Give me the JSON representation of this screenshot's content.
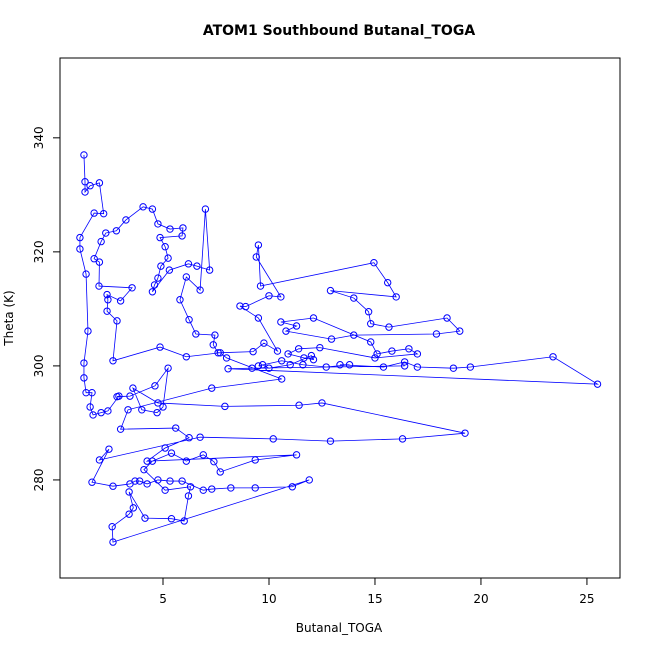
{
  "chart_data": {
    "type": "line",
    "title": "ATOM1 Southbound Butanal_TOGA",
    "xlabel": "Butanal_TOGA",
    "ylabel": "Theta (K)",
    "color": "#0000ff",
    "xlim": [
      0.14,
      26.56
    ],
    "ylim": [
      262.8,
      354.0
    ],
    "xticks": [
      5,
      10,
      15,
      20,
      25
    ],
    "yticks": [
      280,
      300,
      320,
      340
    ],
    "x": [
      1.27,
      1.32,
      1.32,
      1.56,
      2.0,
      2.2,
      1.75,
      1.08,
      1.08,
      1.37,
      1.46,
      1.27,
      1.27,
      1.37,
      1.65,
      1.56,
      1.7,
      2.08,
      2.4,
      2.92,
      2.83,
      3.44,
      4.62,
      5.24,
      5.0,
      4.72,
      4.0,
      3.58,
      4.76,
      7.92,
      11.42,
      12.5,
      19.25,
      16.3,
      12.9,
      10.2,
      6.75,
      2.0,
      2.45,
      1.65,
      2.64,
      3.44,
      3.68,
      3.9,
      4.25,
      4.76,
      5.33,
      5.9,
      6.9,
      7.3,
      8.2,
      9.35,
      11.1,
      11.9,
      2.64,
      2.6,
      3.4,
      3.6,
      3.4,
      4.15,
      5.4,
      6.0,
      6.2,
      6.3,
      5.1,
      4.1,
      4.5,
      5.4,
      6.1,
      6.9,
      7.4,
      7.7,
      9.35,
      11.3,
      4.25,
      5.1,
      6.23,
      5.6,
      3.0,
      3.35,
      7.3,
      10.6,
      8.0,
      7.7,
      6.1,
      4.86,
      2.64,
      2.83,
      2.36,
      2.4,
      2.36,
      3.0,
      3.54,
      1.98,
      2.0,
      1.75,
      2.08,
      2.3,
      2.8,
      3.25,
      4.06,
      4.5,
      4.76,
      5.33,
      5.94,
      5.9,
      4.86,
      5.1,
      5.24,
      4.9,
      4.76,
      4.6,
      4.5,
      5.3,
      6.2,
      6.6,
      7.2,
      7.0,
      6.75,
      6.1,
      5.8,
      6.23,
      6.55,
      7.45,
      7.37,
      7.6,
      9.25,
      9.76,
      10.4,
      9.5,
      8.63,
      8.9,
      10.0,
      10.56,
      9.4,
      9.5,
      9.6,
      14.95,
      15.6,
      16.0,
      12.9,
      14.0,
      14.7,
      14.8,
      15.66,
      18.4,
      19.0,
      17.9,
      14.0,
      12.95,
      10.8,
      11.3,
      10.56,
      12.1,
      14.8,
      15.1,
      15.8,
      16.6,
      17.0,
      15.0,
      12.4,
      11.4,
      10.9,
      11.65,
      12.1,
      12.0,
      11.0,
      10.0,
      9.7,
      9.5,
      10.6,
      11.6,
      12.7,
      13.8,
      13.35,
      15.4,
      16.4,
      17.0,
      18.7,
      19.5,
      23.4,
      25.5,
      8.07,
      9.2,
      16.4
    ],
    "values": [
      337.0,
      332.3,
      330.5,
      331.6,
      332.1,
      326.7,
      326.8,
      322.5,
      320.5,
      316.1,
      306.1,
      300.5,
      297.9,
      295.3,
      295.3,
      292.8,
      291.4,
      291.8,
      292.1,
      294.7,
      294.6,
      294.7,
      296.5,
      299.6,
      292.8,
      291.8,
      292.3,
      296.1,
      293.5,
      292.9,
      293.1,
      293.5,
      288.2,
      287.2,
      286.8,
      287.2,
      287.5,
      283.5,
      285.4,
      279.6,
      278.9,
      279.3,
      279.8,
      279.8,
      279.3,
      280.0,
      279.8,
      279.8,
      278.2,
      278.4,
      278.6,
      278.6,
      278.8,
      280.0,
      269.1,
      271.8,
      274.0,
      275.1,
      277.9,
      273.3,
      273.2,
      272.8,
      277.2,
      278.8,
      278.2,
      281.8,
      283.3,
      284.7,
      283.3,
      284.4,
      283.2,
      281.4,
      283.5,
      284.4,
      283.3,
      285.6,
      287.4,
      289.1,
      288.9,
      292.3,
      296.1,
      297.7,
      301.4,
      302.3,
      301.6,
      303.3,
      300.9,
      307.9,
      309.6,
      311.6,
      312.5,
      311.4,
      313.7,
      314.0,
      318.2,
      318.8,
      321.8,
      323.3,
      323.7,
      325.6,
      327.9,
      327.5,
      324.9,
      324.0,
      324.2,
      322.8,
      322.5,
      320.9,
      318.9,
      317.5,
      315.4,
      314.2,
      313.0,
      316.8,
      317.9,
      317.5,
      316.8,
      327.5,
      313.3,
      315.6,
      311.6,
      308.1,
      305.6,
      305.4,
      303.7,
      302.3,
      302.5,
      304.0,
      302.6,
      308.4,
      310.5,
      310.4,
      312.3,
      312.1,
      319.1,
      321.2,
      314.0,
      318.1,
      314.6,
      312.1,
      313.2,
      311.9,
      309.5,
      307.4,
      306.8,
      308.4,
      306.1,
      305.6,
      305.4,
      304.7,
      306.1,
      307.0,
      307.7,
      308.4,
      304.2,
      302.1,
      302.6,
      303.0,
      302.1,
      301.4,
      303.2,
      303.0,
      302.1,
      301.4,
      301.1,
      301.8,
      300.2,
      299.6,
      300.2,
      300.0,
      300.9,
      300.2,
      299.8,
      300.2,
      300.2,
      299.8,
      300.7,
      299.8,
      299.6,
      299.8,
      301.6,
      296.8,
      299.5,
      299.6,
      300.0
    ]
  }
}
